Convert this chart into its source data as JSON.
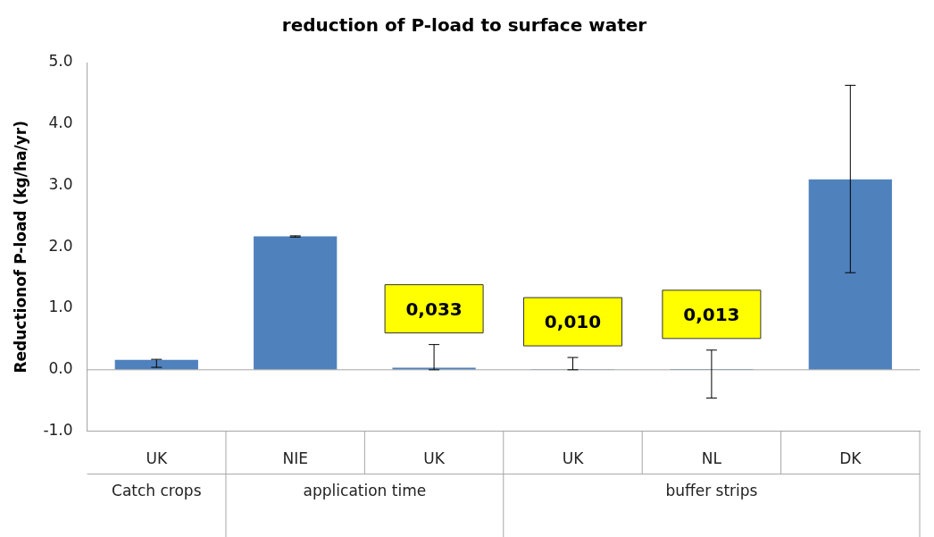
{
  "chart_data": {
    "type": "bar",
    "title": "reduction of P-load to surface water",
    "ylabel": "Reductionof P-load (kg/ha/yr)",
    "categories": [
      "UK",
      "NIE",
      "UK",
      "UK",
      "NL",
      "DK"
    ],
    "values": [
      0.16,
      2.17,
      0.033,
      0.01,
      0.013,
      3.1
    ],
    "color": "#4f81bd",
    "errors": [
      [
        0.04,
        0.17
      ],
      [
        2.16,
        2.18
      ],
      [
        0,
        0.41
      ],
      [
        0,
        0.2
      ],
      [
        -0.46,
        0.32
      ],
      [
        1.58,
        4.63
      ]
    ],
    "value_labels": [
      null,
      null,
      "0,033",
      "0,010",
      "0,013",
      null
    ],
    "annotations": [
      "Catch crops",
      "application time",
      "buffer strips"
    ],
    "ref_lines": [
      {
        "axis": "y",
        "value": 0,
        "color": "#a6a6a6"
      }
    ],
    "ylim": [
      -1,
      5
    ],
    "yticks": [
      {
        "value": -1,
        "label": "-1.0"
      },
      {
        "value": 0,
        "label": "0.0"
      },
      {
        "value": 1,
        "label": "1.0"
      },
      {
        "value": 2,
        "label": "2.0"
      },
      {
        "value": 3,
        "label": "3.0"
      },
      {
        "value": 4,
        "label": "4.0"
      },
      {
        "value": 5,
        "label": "5.0"
      }
    ],
    "grid": false,
    "legend": false
  }
}
